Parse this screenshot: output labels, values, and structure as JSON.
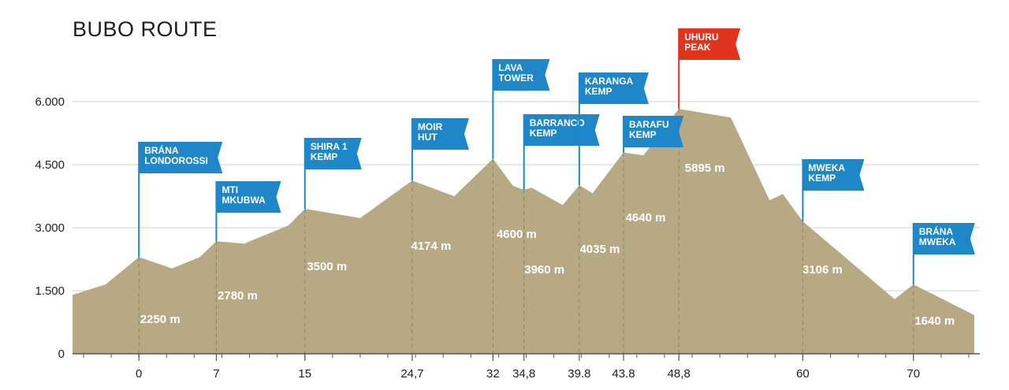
{
  "title": "BUBO ROUTE",
  "colors": {
    "mountain": "#b6a984",
    "flag": "#1f86c7",
    "summit_flag": "#e0341d",
    "grid": "#d0d0d0",
    "axis": "#555555",
    "text": "#1e1e1e"
  },
  "chart_data": {
    "type": "area",
    "title": "BUBO ROUTE",
    "xlabel": "",
    "ylabel": "",
    "ylim": [
      0,
      6000
    ],
    "xlim": [
      -6,
      76
    ],
    "grid": true,
    "y_ticks": [
      {
        "value": 0,
        "label": "0"
      },
      {
        "value": 1500,
        "label": "1.500"
      },
      {
        "value": 3000,
        "label": "3.000"
      },
      {
        "value": 4500,
        "label": "4.500"
      },
      {
        "value": 6000,
        "label": "6.000"
      }
    ],
    "x_ticks": [
      {
        "value": 0,
        "label": "0"
      },
      {
        "value": 7,
        "label": "7"
      },
      {
        "value": 15,
        "label": "15"
      },
      {
        "value": 24.7,
        "label": "24,7"
      },
      {
        "value": 32,
        "label": "32"
      },
      {
        "value": 34.8,
        "label": "34,8"
      },
      {
        "value": 39.8,
        "label": "39.8"
      },
      {
        "value": 43.8,
        "label": "43.8"
      },
      {
        "value": 48.8,
        "label": "48,8"
      },
      {
        "value": 60,
        "label": "60"
      },
      {
        "value": 70,
        "label": "70"
      }
    ],
    "profile": [
      {
        "x": -6,
        "y": 1400
      },
      {
        "x": -3,
        "y": 1650
      },
      {
        "x": 0,
        "y": 2300
      },
      {
        "x": 3,
        "y": 2030
      },
      {
        "x": 5.5,
        "y": 2300
      },
      {
        "x": 7,
        "y": 2680
      },
      {
        "x": 9.5,
        "y": 2620
      },
      {
        "x": 13.5,
        "y": 3050
      },
      {
        "x": 15,
        "y": 3450
      },
      {
        "x": 20,
        "y": 3230
      },
      {
        "x": 24.7,
        "y": 4120
      },
      {
        "x": 28.5,
        "y": 3750
      },
      {
        "x": 32,
        "y": 4640
      },
      {
        "x": 33.8,
        "y": 4000
      },
      {
        "x": 34.8,
        "y": 3900
      },
      {
        "x": 35.5,
        "y": 3950
      },
      {
        "x": 38.3,
        "y": 3540
      },
      {
        "x": 39.8,
        "y": 4010
      },
      {
        "x": 41,
        "y": 3820
      },
      {
        "x": 43.8,
        "y": 4790
      },
      {
        "x": 45.6,
        "y": 4720
      },
      {
        "x": 47.3,
        "y": 5320
      },
      {
        "x": 48.8,
        "y": 5830
      },
      {
        "x": 53.5,
        "y": 5620
      },
      {
        "x": 57,
        "y": 3650
      },
      {
        "x": 58.2,
        "y": 3800
      },
      {
        "x": 60,
        "y": 3150
      },
      {
        "x": 68.3,
        "y": 1300
      },
      {
        "x": 70,
        "y": 1650
      },
      {
        "x": 75.5,
        "y": 920
      }
    ],
    "camps": [
      {
        "x": 0,
        "name": [
          "BRÁNA",
          "LONDOROSSI"
        ],
        "elevation": 2250,
        "elevation_label": "2250 m",
        "summit": false
      },
      {
        "x": 7,
        "name": [
          "MTI",
          "MKUBWA"
        ],
        "elevation": 2780,
        "elevation_label": "2780 m",
        "summit": false
      },
      {
        "x": 15,
        "name": [
          "SHIRA 1",
          "KEMP"
        ],
        "elevation": 3500,
        "elevation_label": "3500 m",
        "summit": false
      },
      {
        "x": 24.7,
        "name": [
          "MOIR",
          "HUT"
        ],
        "elevation": 4174,
        "elevation_label": "4174 m",
        "summit": false
      },
      {
        "x": 32,
        "name": [
          "LAVA",
          "TOWER"
        ],
        "elevation": 4600,
        "elevation_label": "4600 m",
        "summit": false
      },
      {
        "x": 34.8,
        "name": [
          "BARRANCO",
          "KEMP"
        ],
        "elevation": 3960,
        "elevation_label": "3960 m",
        "summit": false
      },
      {
        "x": 39.8,
        "name": [
          "KARANGA",
          "KEMP"
        ],
        "elevation": 4035,
        "elevation_label": "4035 m",
        "summit": false
      },
      {
        "x": 43.8,
        "name": [
          "BARAFU",
          "KEMP"
        ],
        "elevation": 4640,
        "elevation_label": "4640 m",
        "summit": false
      },
      {
        "x": 48.8,
        "name": [
          "UHURU",
          "PEAK"
        ],
        "elevation": 5895,
        "elevation_label": "5895 m",
        "summit": true
      },
      {
        "x": 60,
        "name": [
          "MWEKA",
          "KEMP"
        ],
        "elevation": 3106,
        "elevation_label": "3106 m",
        "summit": false
      },
      {
        "x": 70,
        "name": [
          "BRÁNA",
          "MWEKA"
        ],
        "elevation": 1640,
        "elevation_label": "1640 m",
        "summit": false
      }
    ]
  }
}
